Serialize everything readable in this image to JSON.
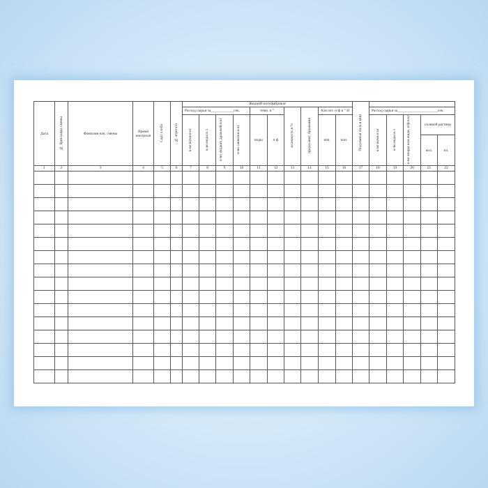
{
  "document": {
    "group_liquid": "Жидкий полуфабрикат",
    "raw_consumption": "Расход сырья за____________сек.",
    "raw_consumption_right": "Расход сырья за_____________________сек.",
    "temp": "темп. в °",
    "acidity": "Кислот. п/ф в ° Н",
    "salt_solution": "солевой раствор",
    "columns": [
      "Дата",
      "№ бригадира смены",
      "Фамилия нач. смены",
      "Время контроля",
      "Сорт хлеба",
      "№ агрегата",
      "к-во муки в кг",
      "к-во воды в л",
      "к-во жидких дрожжей в кг",
      "к-во закваски в кг",
      "воды",
      "п ф",
      "влажность в %",
      "продолжит. брожения",
      "нач.",
      "кон.",
      "Подъемная сила в мин",
      "к-во муки в кг",
      "к-во воды в л",
      "к-во опары или жидк. п/ф в кг",
      "кол.",
      "пл."
    ],
    "column_numbers": [
      "1",
      "2",
      "3",
      "4",
      "5",
      "6",
      "7",
      "8",
      "9",
      "10",
      "11",
      "12",
      "13",
      "14",
      "15",
      "16",
      "17",
      "18",
      "19",
      "20",
      "21",
      "22"
    ],
    "empty_rows": 16
  }
}
